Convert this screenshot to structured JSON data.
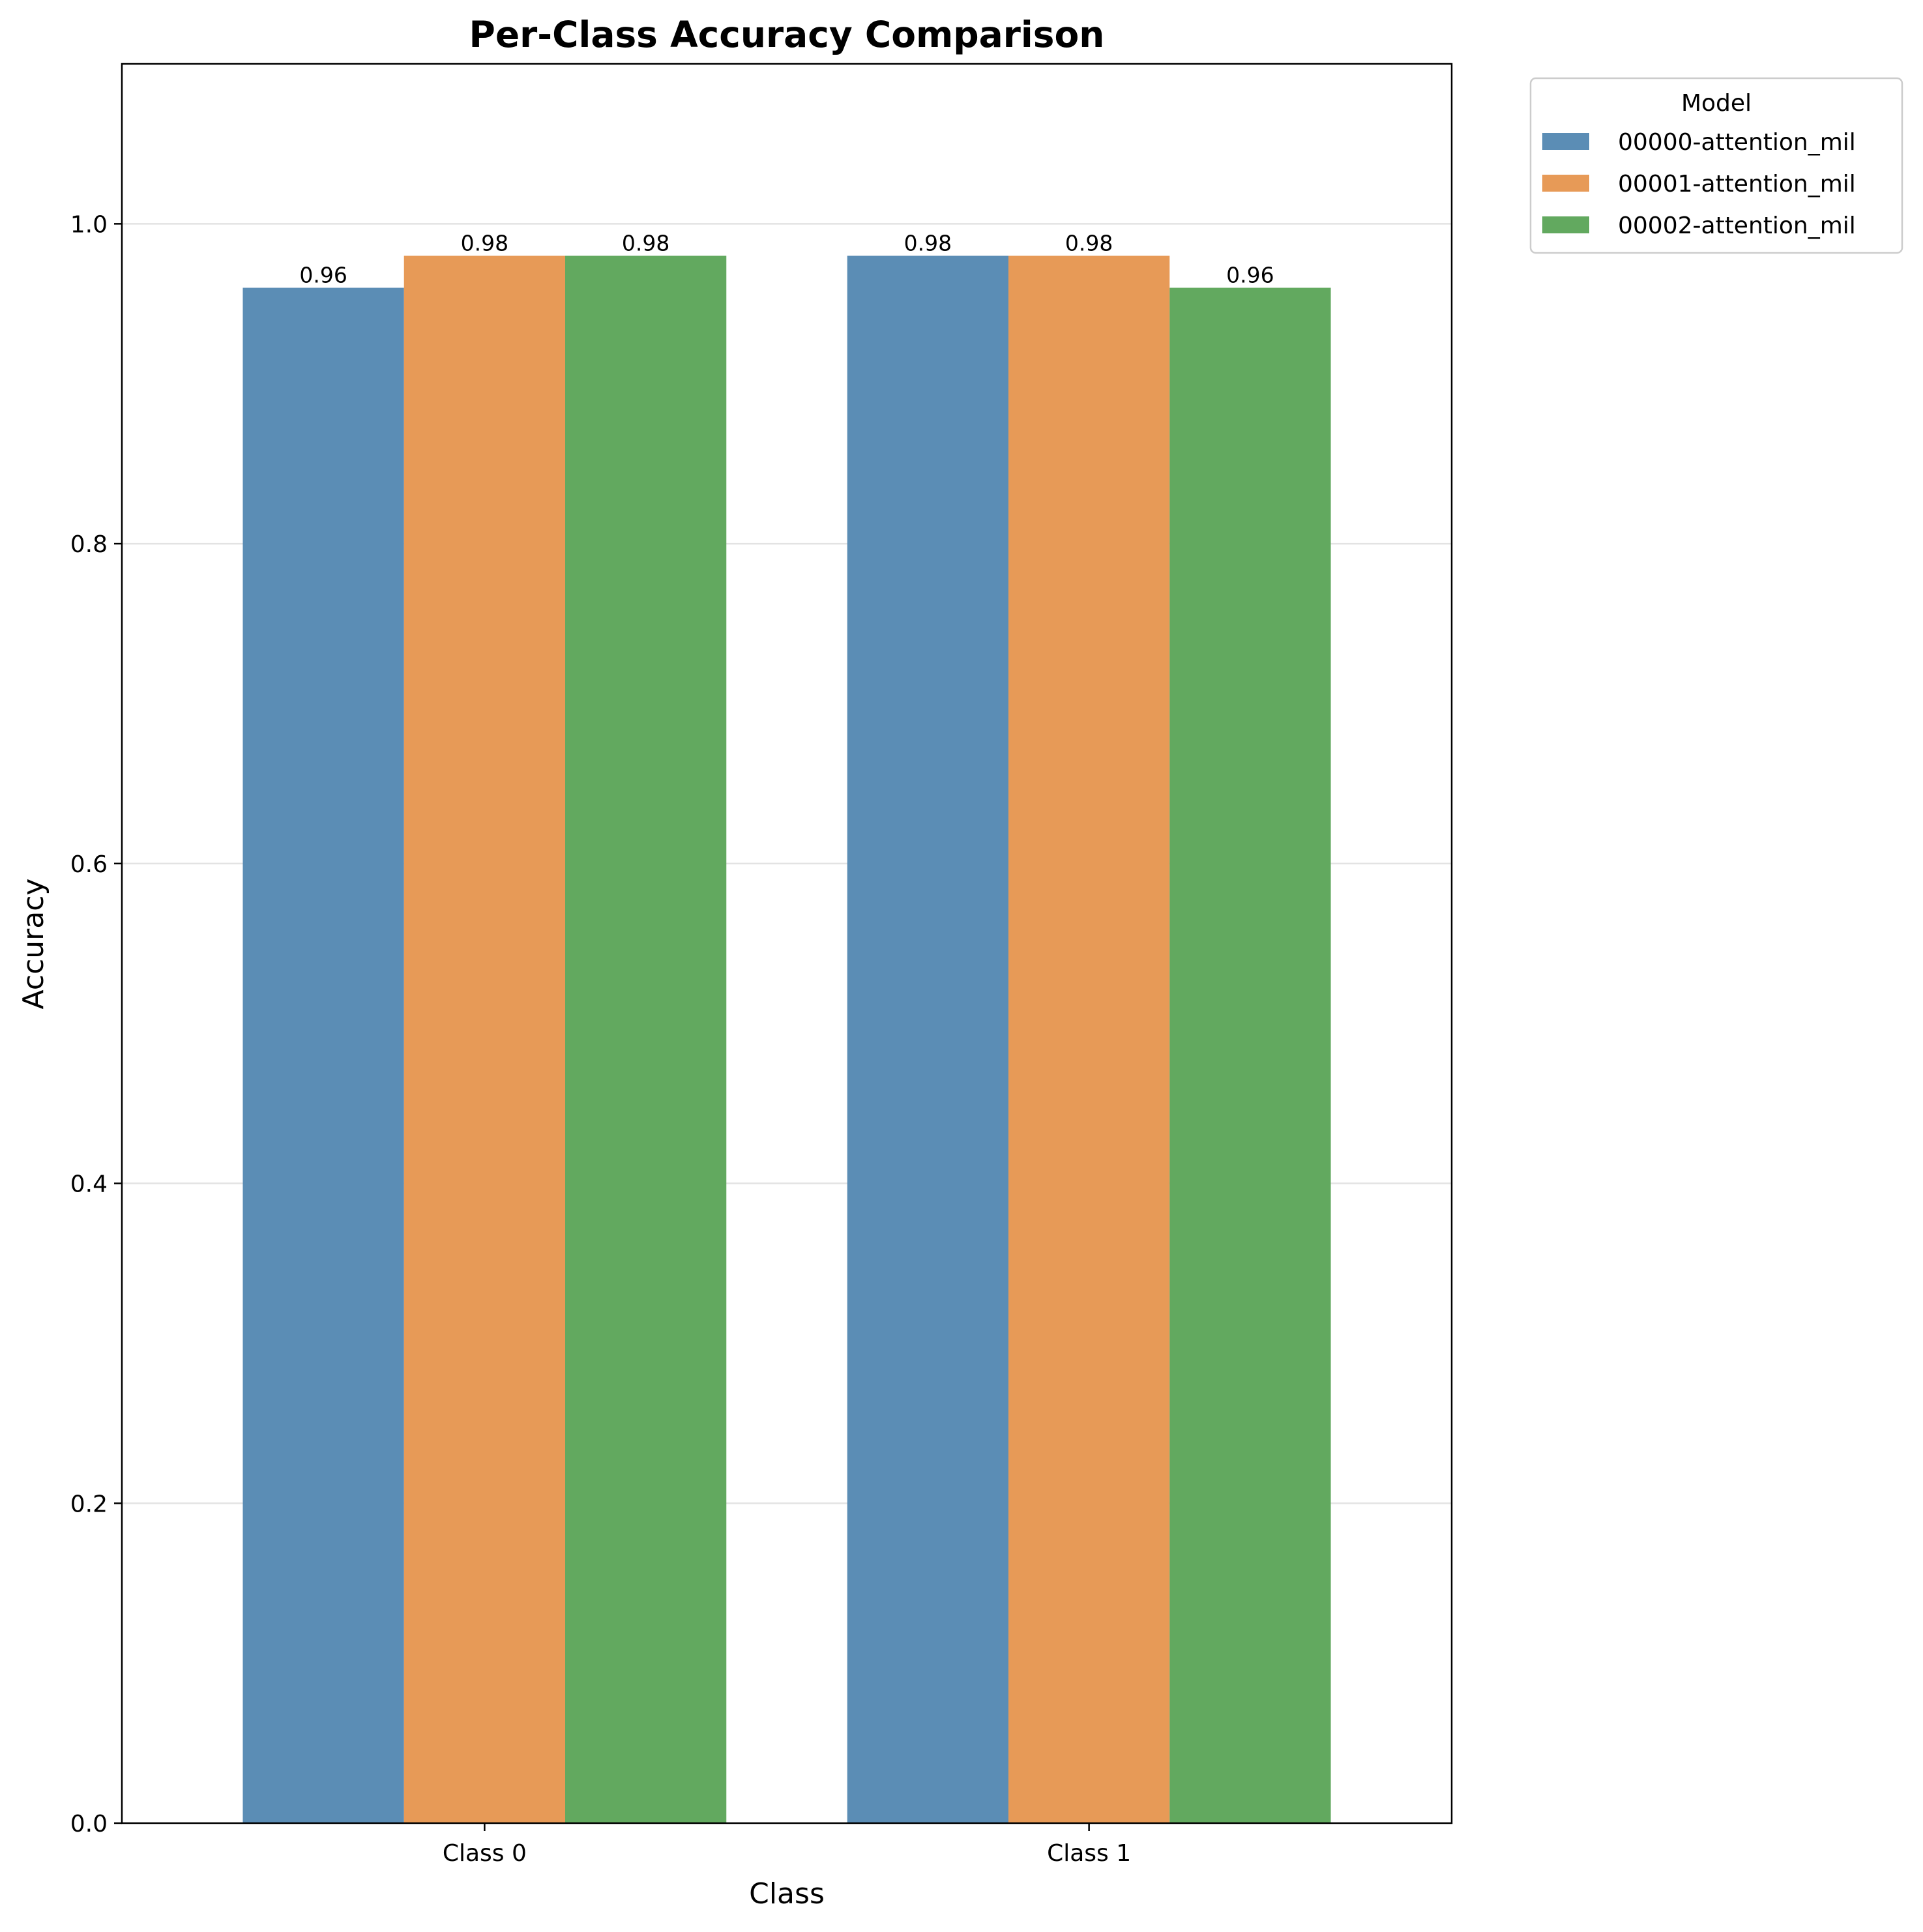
{
  "chart_data": {
    "type": "bar",
    "title": "Per-Class Accuracy Comparison",
    "xlabel": "Class",
    "ylabel": "Accuracy",
    "categories": [
      "Class 0",
      "Class 1"
    ],
    "series": [
      {
        "name": "00000-attention_mil",
        "values": [
          0.96,
          0.98
        ],
        "labels": [
          "0.96",
          "0.98"
        ],
        "color": "#5b8db5"
      },
      {
        "name": "00001-attention_mil",
        "values": [
          0.98,
          0.98
        ],
        "labels": [
          "0.98",
          "0.98"
        ],
        "color": "#e79a57"
      },
      {
        "name": "00002-attention_mil",
        "values": [
          0.98,
          0.96
        ],
        "labels": [
          "0.98",
          "0.96"
        ],
        "color": "#62a95f"
      }
    ],
    "ylim": [
      0,
      1.1
    ],
    "yticks": [
      0.0,
      0.2,
      0.4,
      0.6,
      0.8,
      1.0
    ],
    "ytick_labels": [
      "0.0",
      "0.2",
      "0.4",
      "0.6",
      "0.8",
      "1.0"
    ],
    "grid": "y",
    "legend": {
      "title": "Model",
      "placement": "outside-top-right"
    }
  }
}
